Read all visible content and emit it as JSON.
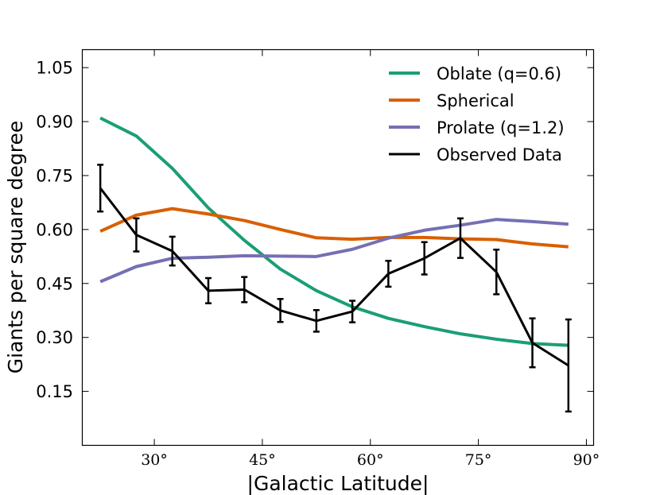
{
  "chart_data": {
    "type": "line",
    "title": "",
    "xlabel": "|Galactic Latitude|",
    "ylabel": "Giants per square degree",
    "xlim": [
      20,
      91
    ],
    "ylim": [
      0.0,
      1.1
    ],
    "x_ticks": [
      30,
      45,
      60,
      75,
      90
    ],
    "x_tick_labels": [
      "30°",
      "45°",
      "60°",
      "75°",
      "90°"
    ],
    "y_ticks": [
      0.15,
      0.3,
      0.45,
      0.6,
      0.75,
      0.9,
      1.05
    ],
    "y_tick_labels": [
      "0.15",
      "0.30",
      "0.45",
      "0.60",
      "0.75",
      "0.90",
      "1.05"
    ],
    "grid": false,
    "legend_position": "top-right",
    "series": [
      {
        "name": "Oblate (q=0.6)",
        "color": "#1b9e77",
        "x": [
          22.5,
          27.5,
          32.5,
          37.5,
          42.5,
          47.5,
          52.5,
          57.5,
          62.5,
          67.5,
          72.5,
          77.5,
          82.5,
          87.5
        ],
        "values": [
          0.91,
          0.86,
          0.77,
          0.66,
          0.57,
          0.49,
          0.43,
          0.385,
          0.353,
          0.33,
          0.31,
          0.295,
          0.283,
          0.278
        ]
      },
      {
        "name": "Spherical",
        "color": "#d95f02",
        "x": [
          22.5,
          27.5,
          32.5,
          37.5,
          42.5,
          47.5,
          52.5,
          57.5,
          62.5,
          67.5,
          72.5,
          77.5,
          82.5,
          87.5
        ],
        "values": [
          0.595,
          0.64,
          0.658,
          0.643,
          0.625,
          0.6,
          0.577,
          0.573,
          0.578,
          0.578,
          0.574,
          0.572,
          0.56,
          0.552
        ]
      },
      {
        "name": "Prolate (q=1.2)",
        "color": "#7570b3",
        "x": [
          22.5,
          27.5,
          32.5,
          37.5,
          42.5,
          47.5,
          52.5,
          57.5,
          62.5,
          67.5,
          72.5,
          77.5,
          82.5,
          87.5
        ],
        "values": [
          0.455,
          0.497,
          0.52,
          0.523,
          0.527,
          0.526,
          0.525,
          0.545,
          0.576,
          0.598,
          0.612,
          0.628,
          0.622,
          0.615
        ]
      },
      {
        "name": "Observed Data",
        "color": "#000000",
        "x": [
          22.5,
          27.5,
          32.5,
          37.5,
          42.5,
          47.5,
          52.5,
          57.5,
          62.5,
          67.5,
          72.5,
          77.5,
          82.5,
          87.5
        ],
        "values": [
          0.715,
          0.585,
          0.54,
          0.43,
          0.433,
          0.375,
          0.346,
          0.372,
          0.477,
          0.52,
          0.576,
          0.482,
          0.285,
          0.222
        ],
        "errors": [
          0.065,
          0.046,
          0.04,
          0.035,
          0.035,
          0.032,
          0.03,
          0.03,
          0.036,
          0.045,
          0.055,
          0.062,
          0.068,
          0.128
        ]
      }
    ]
  }
}
